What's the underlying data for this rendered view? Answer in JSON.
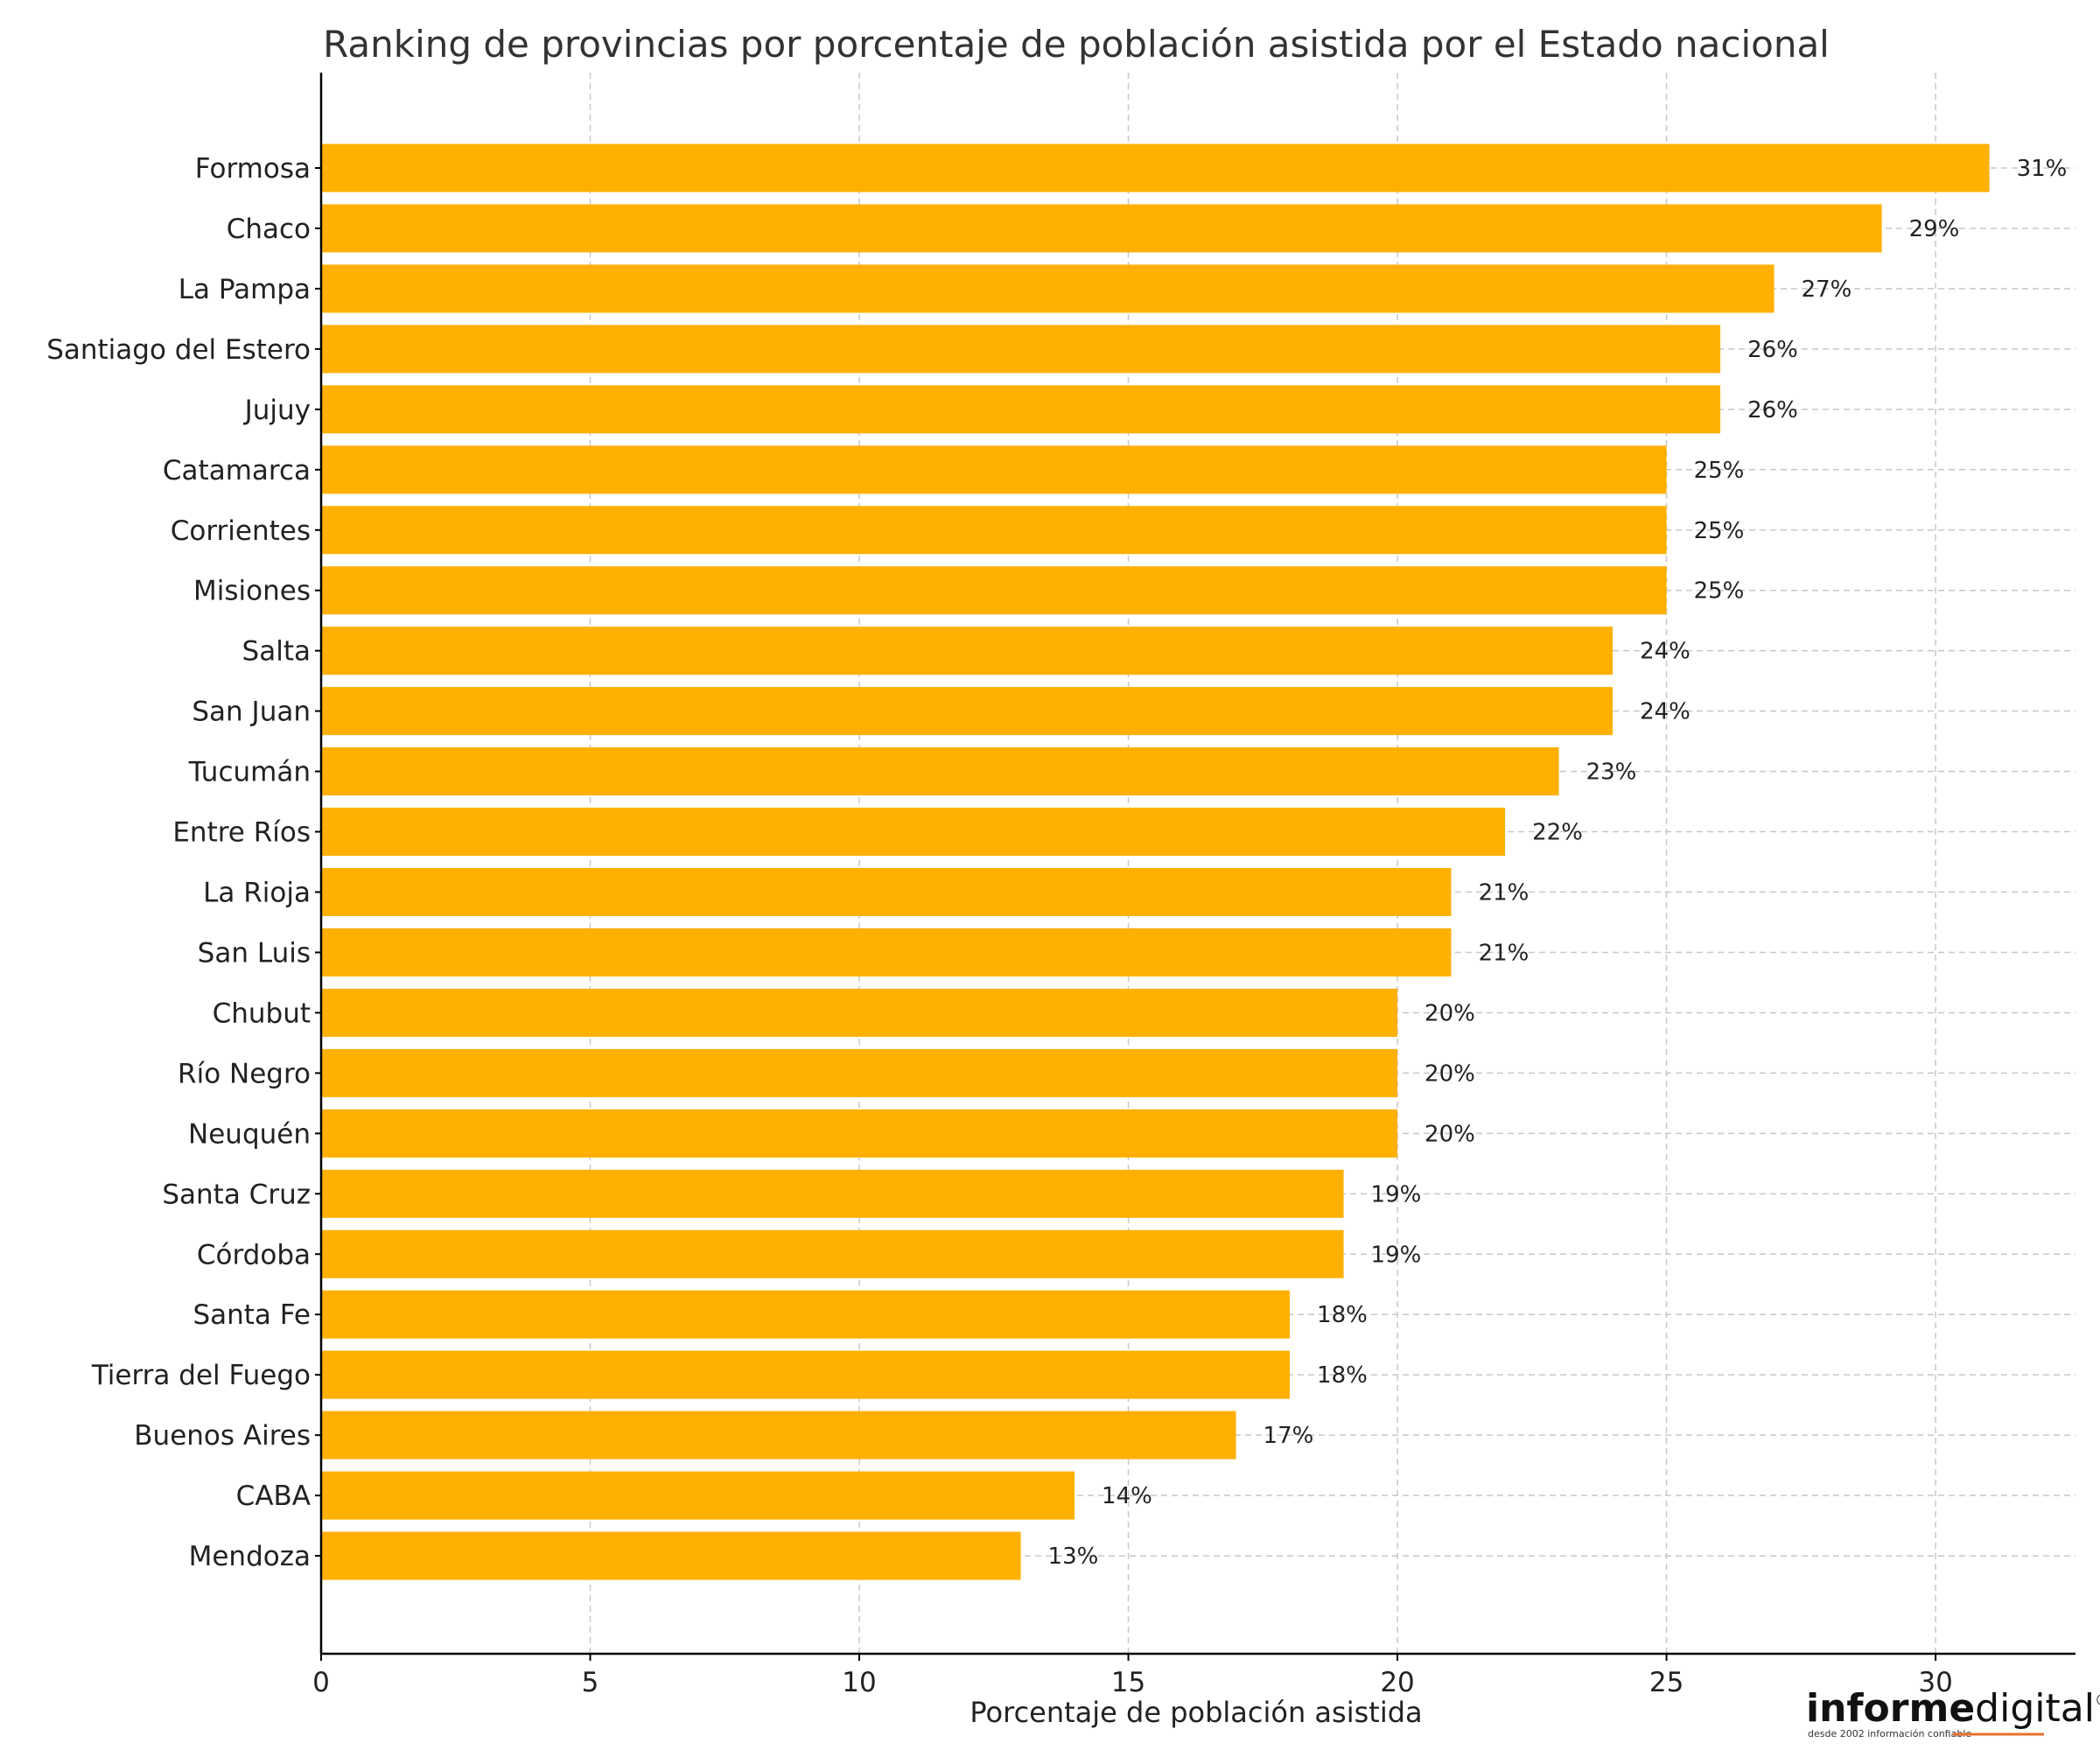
{
  "chart_data": {
    "type": "bar",
    "orientation": "horizontal",
    "title": "Ranking de provincias por porcentaje de población asistida por el Estado nacional",
    "xlabel": "Porcentaje de población asistida",
    "ylabel": "",
    "xlim": [
      0,
      32.6
    ],
    "xticks": [
      0,
      5,
      10,
      15,
      20,
      25,
      30
    ],
    "grid": true,
    "bar_color": "#FFB000",
    "categories": [
      "Formosa",
      "Chaco",
      "La Pampa",
      "Santiago del Estero",
      "Jujuy",
      "Catamarca",
      "Corrientes",
      "Misiones",
      "Salta",
      "San Juan",
      "Tucumán",
      "Entre Ríos",
      "La Rioja",
      "San Luis",
      "Chubut",
      "Río Negro",
      "Neuquén",
      "Santa Cruz",
      "Córdoba",
      "Santa Fe",
      "Tierra del Fuego",
      "Buenos Aires",
      "CABA",
      "Mendoza"
    ],
    "values": [
      31,
      29,
      27,
      26,
      26,
      25,
      25,
      25,
      24,
      24,
      23,
      22,
      21,
      21,
      20,
      20,
      20,
      19,
      19,
      18,
      18,
      17,
      14,
      13
    ],
    "value_labels": [
      "31%",
      "29%",
      "27%",
      "26%",
      "26%",
      "25%",
      "25%",
      "25%",
      "24%",
      "24%",
      "23%",
      "22%",
      "21%",
      "21%",
      "20%",
      "20%",
      "20%",
      "19%",
      "19%",
      "18%",
      "18%",
      "17%",
      "14%",
      "13%"
    ]
  },
  "logo": {
    "bold": "informe",
    "light": "digital",
    "reg": "®",
    "tagline": "desde 2002 información confiable"
  }
}
